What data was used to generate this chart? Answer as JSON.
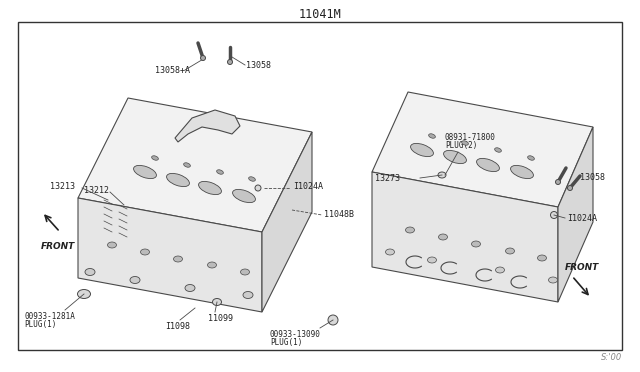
{
  "title": "11041M",
  "bg_color": "#ffffff",
  "border_color": "#333333",
  "line_color": "#4a4a4a",
  "text_color": "#222222",
  "light_line_color": "#888888",
  "page_label": "S:'00",
  "front_left": "FRONT",
  "front_right": "FRONT",
  "part_13058_a": "13058+A",
  "part_13058": "13058",
  "part_13213": "13213",
  "part_13212": "13212",
  "part_11024a_left": "I1024A",
  "part_11048b": "11048B",
  "part_11099": "11099",
  "part_11098": "I1098",
  "part_00933_1281a_l1": "00933-1281A",
  "part_00933_1281a_l2": "PLUG(1)",
  "part_00933_13090_l1": "00933-13090",
  "part_00933_13090_l2": "PLUG(1)",
  "part_08931_71800_l1": "08931-71800",
  "part_08931_71800_l2": "PLUG(2)",
  "part_13273": "13273",
  "part_13058_right": "13058",
  "part_11024a_right": "I1024A"
}
